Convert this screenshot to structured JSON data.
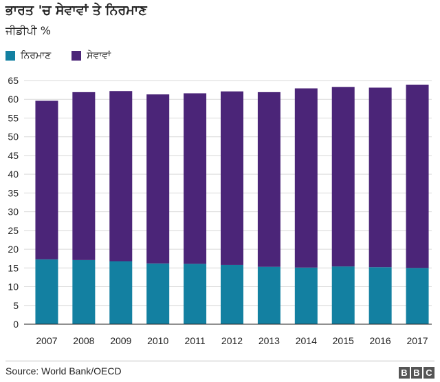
{
  "header": {
    "title": "ਭਾਰਤ 'ਚ ਸੇਵਾਵਾਂ ਤੇ ਨਿਰਮਾਣ",
    "subtitle": "ਜੀਡੀਪੀ %"
  },
  "footer": {
    "source": "Source: World Bank/OECD",
    "logo_letters": [
      "B",
      "B",
      "C"
    ]
  },
  "colors": {
    "manufacturing": "#1380A1",
    "services": "#4B2578",
    "gridline": "#d9d9d9",
    "axis": "#222222"
  },
  "chart_data": {
    "type": "bar",
    "stacked": true,
    "title": "ਭਾਰਤ 'ਚ ਸੇਵਾਵਾਂ ਤੇ ਨਿਰਮਾਣ",
    "ylabel": "ਜੀਡੀਪੀ %",
    "xlabel": "",
    "ylim": [
      0,
      65
    ],
    "yticks": [
      0,
      5,
      10,
      15,
      20,
      25,
      30,
      35,
      40,
      45,
      50,
      55,
      60,
      65
    ],
    "grid": true,
    "legend_position": "top-left",
    "categories": [
      "2007",
      "2008",
      "2009",
      "2010",
      "2011",
      "2012",
      "2013",
      "2014",
      "2015",
      "2016",
      "2017"
    ],
    "series": [
      {
        "name": "ਨਿਰਮਾਣ",
        "color": "#1380A1",
        "values": [
          17.3,
          17.1,
          16.8,
          16.2,
          16.1,
          15.8,
          15.3,
          15.1,
          15.4,
          15.2,
          15.0
        ]
      },
      {
        "name": "ਸੇਵਾਵਾਂ",
        "color": "#4B2578",
        "values": [
          42.3,
          44.8,
          45.4,
          45.1,
          45.5,
          46.3,
          46.6,
          47.8,
          47.9,
          47.9,
          48.9
        ]
      }
    ]
  }
}
